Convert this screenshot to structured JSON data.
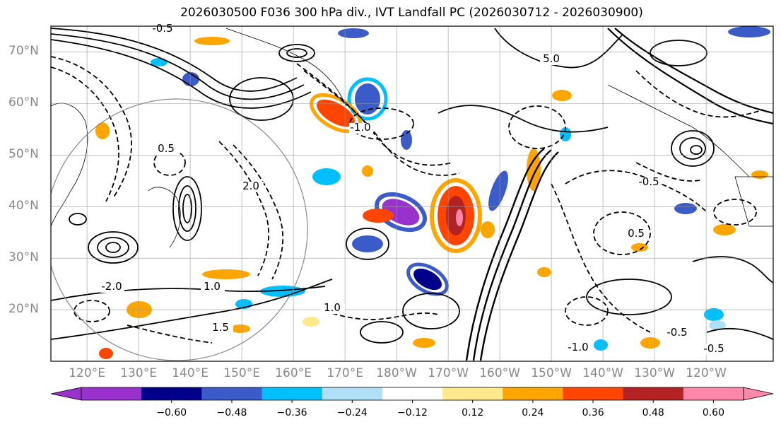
{
  "title": "2026030500 F036 300 hPa div., IVT Landfall PC (2026030712 - 2026030900)",
  "map": {
    "lat_labels": [
      "70°N",
      "60°N",
      "50°N",
      "40°N",
      "30°N",
      "20°N"
    ],
    "lat_values": [
      70,
      60,
      50,
      40,
      30,
      20
    ],
    "lon_labels": [
      "120°E",
      "130°E",
      "140°E",
      "150°E",
      "160°E",
      "170°E",
      "180°W",
      "170°W",
      "160°W",
      "150°W",
      "140°W",
      "130°W",
      "120°W"
    ],
    "lon_values": [
      120,
      130,
      140,
      150,
      160,
      170,
      180,
      190,
      200,
      210,
      220,
      230,
      240
    ],
    "lat_range": [
      10,
      75
    ],
    "lon_range": [
      113,
      253
    ],
    "grid": true,
    "contour_labels": [
      "-0.5",
      "1.0",
      "5.0",
      "-1.0",
      "0.5",
      "-2.0",
      "2.0",
      "1.5",
      "-0.5",
      "0.5",
      "-0.5",
      "-1.0",
      "-0.5",
      "1.0"
    ]
  },
  "colorbar": {
    "tick_labels": [
      "−0.60",
      "−0.48",
      "−0.36",
      "−0.24",
      "−0.12",
      "0.12",
      "0.24",
      "0.36",
      "0.48",
      "0.60"
    ],
    "colors": [
      "#9932cc",
      "#00008b",
      "#3a5bc8",
      "#00bfff",
      "#b0e0f8",
      "#ffffff",
      "#ffe98a",
      "#ffa500",
      "#ff4500",
      "#b22222",
      "#ff88aa",
      "#ff88aa"
    ],
    "extend": "both"
  }
}
